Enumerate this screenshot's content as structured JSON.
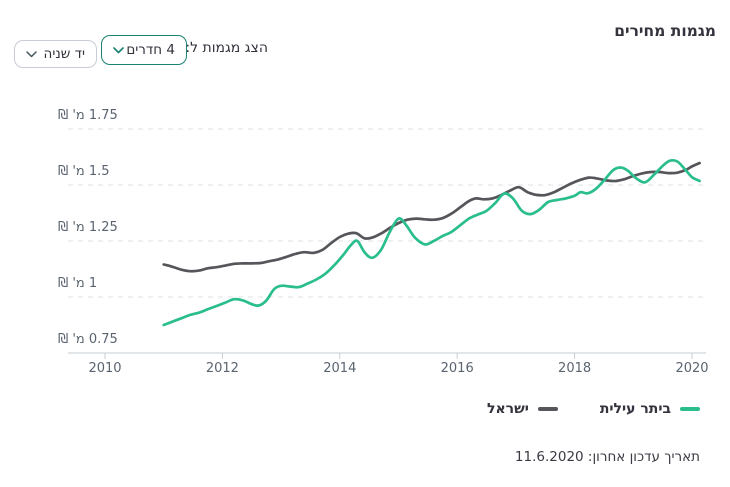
{
  "header": {
    "title": "מגמות מחירים"
  },
  "controls": {
    "label": "הצג מגמות ל:",
    "rooms_dropdown": {
      "value": "4 חדרים"
    },
    "condition_dropdown": {
      "value": "יד שניה"
    }
  },
  "footer": {
    "last_update": "תאריך עדכון אחרון: 11.6.2020"
  },
  "chart_data": {
    "type": "line",
    "title": "מגמות מחירים",
    "xlabel": "",
    "ylabel": "",
    "xlim": [
      2010,
      2020.3
    ],
    "ylim": [
      0.75,
      1.75
    ],
    "grid": "horizontal-dashed",
    "legend_position": "bottom-right",
    "x_ticks": [
      2010,
      2012,
      2014,
      2016,
      2018,
      2020
    ],
    "y_ticks": [
      {
        "v": 1.75,
        "label": "1.75 מ' ₪"
      },
      {
        "v": 1.5,
        "label": "1.5 מ' ₪"
      },
      {
        "v": 1.25,
        "label": "1.25 מ' ₪"
      },
      {
        "v": 1.0,
        "label": "1 מ' ₪"
      },
      {
        "v": 0.75,
        "label": "0.75 מ' ₪"
      }
    ],
    "series": [
      {
        "name": "ביתר עילית",
        "color": "#2abd8e",
        "points": [
          [
            2011.0,
            0.875
          ],
          [
            2011.15,
            0.89
          ],
          [
            2011.3,
            0.905
          ],
          [
            2011.45,
            0.92
          ],
          [
            2011.6,
            0.93
          ],
          [
            2011.75,
            0.945
          ],
          [
            2011.9,
            0.96
          ],
          [
            2012.05,
            0.975
          ],
          [
            2012.2,
            0.99
          ],
          [
            2012.35,
            0.985
          ],
          [
            2012.5,
            0.968
          ],
          [
            2012.62,
            0.962
          ],
          [
            2012.75,
            0.985
          ],
          [
            2012.88,
            1.035
          ],
          [
            2013.0,
            1.05
          ],
          [
            2013.15,
            1.047
          ],
          [
            2013.3,
            1.044
          ],
          [
            2013.45,
            1.06
          ],
          [
            2013.6,
            1.078
          ],
          [
            2013.75,
            1.103
          ],
          [
            2013.9,
            1.14
          ],
          [
            2014.05,
            1.185
          ],
          [
            2014.2,
            1.235
          ],
          [
            2014.3,
            1.25
          ],
          [
            2014.42,
            1.2
          ],
          [
            2014.55,
            1.175
          ],
          [
            2014.7,
            1.21
          ],
          [
            2014.85,
            1.29
          ],
          [
            2015.0,
            1.35
          ],
          [
            2015.12,
            1.325
          ],
          [
            2015.28,
            1.265
          ],
          [
            2015.45,
            1.235
          ],
          [
            2015.6,
            1.25
          ],
          [
            2015.75,
            1.272
          ],
          [
            2015.9,
            1.29
          ],
          [
            2016.05,
            1.32
          ],
          [
            2016.2,
            1.35
          ],
          [
            2016.35,
            1.368
          ],
          [
            2016.5,
            1.385
          ],
          [
            2016.65,
            1.42
          ],
          [
            2016.8,
            1.462
          ],
          [
            2016.95,
            1.44
          ],
          [
            2017.1,
            1.385
          ],
          [
            2017.25,
            1.37
          ],
          [
            2017.4,
            1.39
          ],
          [
            2017.55,
            1.424
          ],
          [
            2017.7,
            1.433
          ],
          [
            2017.85,
            1.44
          ],
          [
            2018.0,
            1.452
          ],
          [
            2018.1,
            1.468
          ],
          [
            2018.22,
            1.463
          ],
          [
            2018.35,
            1.48
          ],
          [
            2018.5,
            1.52
          ],
          [
            2018.65,
            1.565
          ],
          [
            2018.78,
            1.578
          ],
          [
            2018.9,
            1.565
          ],
          [
            2019.05,
            1.53
          ],
          [
            2019.2,
            1.512
          ],
          [
            2019.35,
            1.545
          ],
          [
            2019.5,
            1.585
          ],
          [
            2019.62,
            1.608
          ],
          [
            2019.75,
            1.605
          ],
          [
            2019.88,
            1.57
          ],
          [
            2020.0,
            1.535
          ],
          [
            2020.13,
            1.518
          ]
        ]
      },
      {
        "name": "ישראל",
        "color": "#55565a",
        "points": [
          [
            2011.0,
            1.145
          ],
          [
            2011.15,
            1.135
          ],
          [
            2011.3,
            1.122
          ],
          [
            2011.45,
            1.115
          ],
          [
            2011.6,
            1.118
          ],
          [
            2011.75,
            1.128
          ],
          [
            2011.9,
            1.133
          ],
          [
            2012.05,
            1.14
          ],
          [
            2012.2,
            1.148
          ],
          [
            2012.35,
            1.15
          ],
          [
            2012.5,
            1.15
          ],
          [
            2012.65,
            1.152
          ],
          [
            2012.8,
            1.16
          ],
          [
            2012.95,
            1.168
          ],
          [
            2013.1,
            1.18
          ],
          [
            2013.25,
            1.193
          ],
          [
            2013.4,
            1.2
          ],
          [
            2013.55,
            1.197
          ],
          [
            2013.7,
            1.21
          ],
          [
            2013.85,
            1.24
          ],
          [
            2014.0,
            1.268
          ],
          [
            2014.15,
            1.283
          ],
          [
            2014.28,
            1.285
          ],
          [
            2014.42,
            1.262
          ],
          [
            2014.55,
            1.265
          ],
          [
            2014.7,
            1.283
          ],
          [
            2014.85,
            1.308
          ],
          [
            2015.0,
            1.33
          ],
          [
            2015.15,
            1.345
          ],
          [
            2015.3,
            1.35
          ],
          [
            2015.45,
            1.347
          ],
          [
            2015.6,
            1.345
          ],
          [
            2015.75,
            1.352
          ],
          [
            2015.9,
            1.372
          ],
          [
            2016.05,
            1.4
          ],
          [
            2016.2,
            1.428
          ],
          [
            2016.32,
            1.44
          ],
          [
            2016.45,
            1.436
          ],
          [
            2016.6,
            1.44
          ],
          [
            2016.75,
            1.455
          ],
          [
            2016.9,
            1.475
          ],
          [
            2017.05,
            1.49
          ],
          [
            2017.2,
            1.468
          ],
          [
            2017.35,
            1.456
          ],
          [
            2017.5,
            1.455
          ],
          [
            2017.65,
            1.468
          ],
          [
            2017.8,
            1.488
          ],
          [
            2017.95,
            1.508
          ],
          [
            2018.1,
            1.523
          ],
          [
            2018.25,
            1.533
          ],
          [
            2018.4,
            1.528
          ],
          [
            2018.55,
            1.52
          ],
          [
            2018.7,
            1.518
          ],
          [
            2018.85,
            1.526
          ],
          [
            2019.0,
            1.54
          ],
          [
            2019.15,
            1.552
          ],
          [
            2019.3,
            1.558
          ],
          [
            2019.45,
            1.558
          ],
          [
            2019.6,
            1.553
          ],
          [
            2019.75,
            1.555
          ],
          [
            2019.9,
            1.568
          ],
          [
            2020.0,
            1.583
          ],
          [
            2020.13,
            1.598
          ]
        ]
      }
    ]
  }
}
